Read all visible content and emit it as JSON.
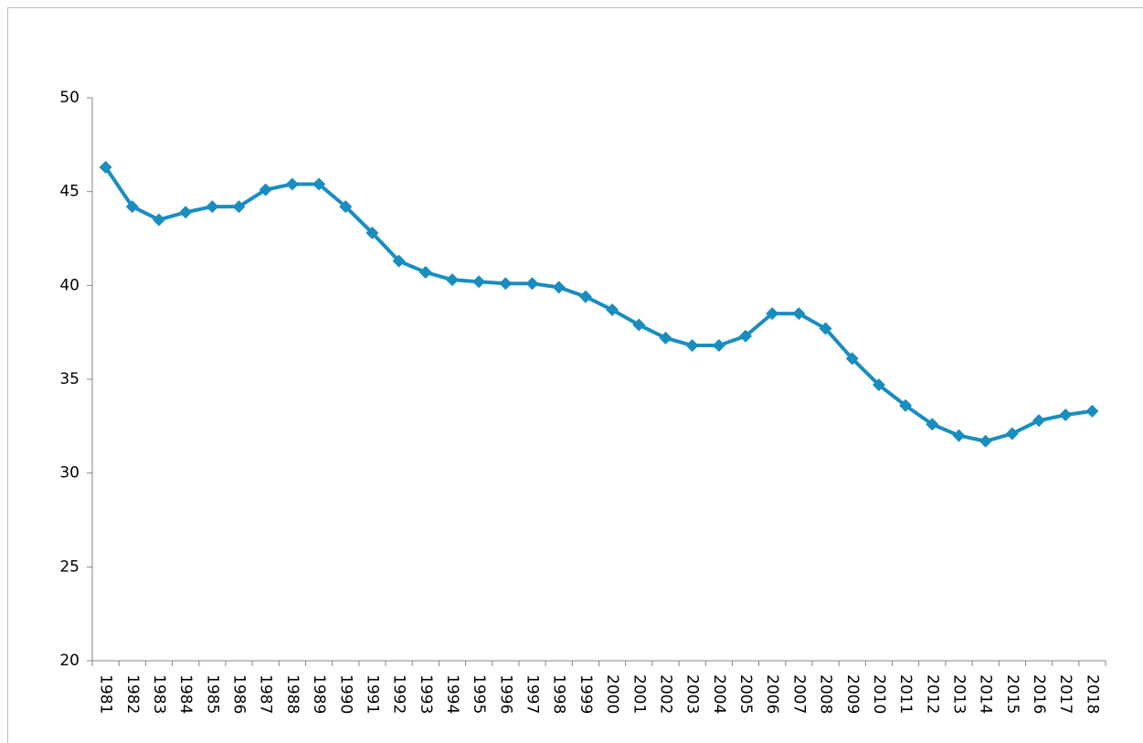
{
  "chart_data": {
    "type": "line",
    "categories": [
      "1981",
      "1982",
      "1983",
      "1984",
      "1985",
      "1986",
      "1987",
      "1988",
      "1989",
      "1990",
      "1991",
      "1992",
      "1993",
      "1994",
      "1995",
      "1996",
      "1997",
      "1998",
      "1999",
      "2000",
      "2001",
      "2002",
      "2003",
      "2004",
      "2005",
      "2006",
      "2007",
      "2008",
      "2009",
      "2010",
      "2011",
      "2012",
      "2013",
      "2014",
      "2015",
      "2016",
      "2017",
      "2018"
    ],
    "values": [
      46.3,
      44.2,
      43.5,
      43.9,
      44.2,
      44.2,
      45.1,
      45.4,
      45.4,
      44.2,
      42.8,
      41.3,
      40.7,
      40.3,
      40.2,
      40.1,
      40.1,
      39.9,
      39.4,
      38.7,
      37.9,
      37.2,
      36.8,
      36.8,
      37.3,
      38.5,
      38.5,
      37.7,
      36.1,
      34.7,
      33.6,
      32.6,
      32.0,
      31.7,
      32.1,
      32.8,
      33.1,
      33.3
    ],
    "color": "#1a8dbf",
    "ylim": [
      20,
      50
    ],
    "yticks": [
      20,
      25,
      30,
      35,
      40,
      45,
      50
    ],
    "grid": false
  }
}
